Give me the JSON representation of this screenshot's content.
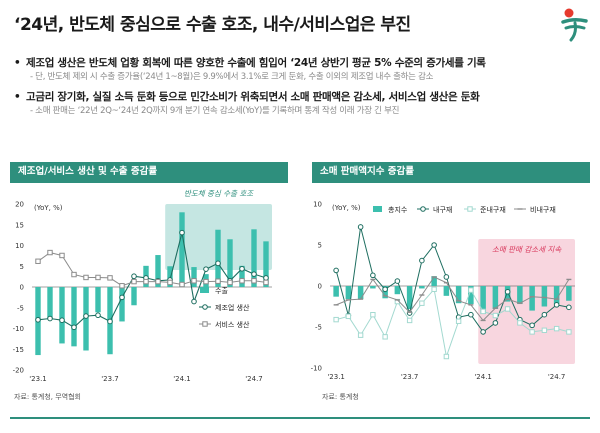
{
  "page": {
    "title": "‘24년, 반도체 중심으로 수출 호조, 내수/서비스업은 부진",
    "bullets": [
      {
        "main": "제조업 생산은 반도체 업황 회복에 따른 양호한 수출에 힘입어 ‘24년 상반기 평균 5% 수준의 증가세를 기록",
        "sub": "- 단, 반도체 제외 시 수출 증가율(‘24년 1~8월)은 9.9%에서 3.1%로 크게 둔화, 수출 이외의 제조업 내수 출하는 감소"
      },
      {
        "main": "고금리 장기화, 실질 소득 둔화 등으로 민간소비가 위축되면서 소매 판매액은 감소세, 서비스업 생산은 둔화",
        "sub": "- 소매 판매는 ‘22년 2Q~‘24년 2Q까지 9개 분기 연속 감소세(YoY)를 기록하며 통계 작성 이래 가장 긴 부진"
      }
    ],
    "left_panel_title": "제조업/서비스 생산 및 수출 증감률",
    "right_panel_title": "소매 판매액지수 증감률",
    "left_source": "자료: 통계청, 무역협회",
    "right_source": "자료: 통계청",
    "colors": {
      "accent": "#2e8f7d",
      "bar": "#3cbfae",
      "line_dark": "#1e6e60",
      "line_gray": "#8c8c8c",
      "line_light": "#a3d9d0",
      "highlight_teal": "#c5e6e2",
      "highlight_pink": "#f8d6df"
    }
  },
  "chart_data": [
    {
      "type": "bar",
      "title": "제조업/서비스 생산 및 수출 증감률",
      "unit_label": "(YoY, %)",
      "xlabel": "",
      "ylabel": "",
      "ylim": [
        -20,
        20
      ],
      "yticks": [
        -20,
        -15,
        -10,
        -5,
        0,
        5,
        10,
        15,
        20
      ],
      "x_tick_labels": [
        {
          "index": 0,
          "label": "'23.1"
        },
        {
          "index": 6,
          "label": "'23.7"
        },
        {
          "index": 12,
          "label": "'24.1"
        },
        {
          "index": 18,
          "label": "'24.7"
        }
      ],
      "annotation": {
        "text": "반도체 중심 수출 호조",
        "from_index": 11,
        "to_index": 20
      },
      "series": [
        {
          "name": "수출",
          "kind": "bar",
          "values": [
            -16.4,
            -7.5,
            -13.6,
            -14.3,
            -15.3,
            -6.1,
            -16.2,
            -8.3,
            -4.4,
            5.1,
            7.7,
            5.0,
            18.0,
            4.8,
            3.1,
            13.8,
            11.5,
            5.1,
            13.9,
            11.0
          ]
        },
        {
          "name": "제조업 생산",
          "kind": "line",
          "values": [
            -7.9,
            -7.6,
            -8.0,
            -9.7,
            -7.0,
            -6.8,
            -8.3,
            -2.5,
            2.6,
            2.2,
            1.5,
            1.7,
            13.1,
            -3.5,
            4.3,
            5.7,
            1.5,
            4.4,
            3.1,
            2.2
          ]
        },
        {
          "name": "서비스 생산",
          "kind": "line",
          "values": [
            6.2,
            8.3,
            7.6,
            3.0,
            2.3,
            2.3,
            2.2,
            0.3,
            1.3,
            1.3,
            1.3,
            1.1,
            0.6,
            1.5,
            1.3,
            1.4,
            1.1,
            1.5,
            1.5,
            1.1
          ]
        }
      ]
    },
    {
      "type": "bar",
      "title": "소매 판매액지수 증감률",
      "unit_label": "(YoY, %)",
      "xlabel": "",
      "ylabel": "",
      "ylim": [
        -10,
        10
      ],
      "yticks": [
        -10,
        -5,
        0,
        5,
        10
      ],
      "x_tick_labels": [
        {
          "index": 0,
          "label": "'23.1"
        },
        {
          "index": 6,
          "label": "'23.7"
        },
        {
          "index": 12,
          "label": "'24.1"
        },
        {
          "index": 18,
          "label": "'24.7"
        }
      ],
      "annotation": {
        "text": "소매 판매 감소세 지속",
        "from_index": 12,
        "to_index": 20
      },
      "series": [
        {
          "name": "총지수",
          "kind": "bar",
          "values": [
            -1.3,
            -1.6,
            -1.6,
            -0.3,
            -1.5,
            -1.0,
            -2.8,
            -0.3,
            1.2,
            -1.2,
            -2.1,
            -2.2,
            -3.4,
            -2.8,
            -1.9,
            -2.2,
            -3.0,
            -2.5,
            -2.2,
            -1.8
          ]
        },
        {
          "name": "내구재",
          "kind": "line",
          "values": [
            1.9,
            -3.6,
            7.2,
            1.3,
            -0.4,
            0.6,
            -3.3,
            3.1,
            5.0,
            1.1,
            -3.8,
            -3.5,
            -5.6,
            -4.5,
            -0.7,
            -4.1,
            -4.8,
            -3.5,
            -2.3,
            -2.6
          ]
        },
        {
          "name": "준내구재",
          "kind": "line",
          "values": [
            -4.1,
            -3.7,
            -6.0,
            -3.5,
            -6.2,
            -1.9,
            -4.2,
            -2.1,
            -0.4,
            -8.6,
            -4.3,
            -0.5,
            -3.1,
            -3.6,
            -2.8,
            -4.5,
            -5.6,
            -5.4,
            -5.2,
            -5.6
          ]
        },
        {
          "name": "비내구재",
          "kind": "line",
          "values": [
            -2.3,
            -1.7,
            -1.6,
            0.8,
            -1.2,
            -1.7,
            -3.2,
            -1.1,
            1.1,
            0.4,
            -1.8,
            -2.3,
            -4.2,
            -2.7,
            -1.6,
            -2.1,
            -1.3,
            -1.4,
            -1.6,
            0.8
          ]
        }
      ]
    }
  ]
}
